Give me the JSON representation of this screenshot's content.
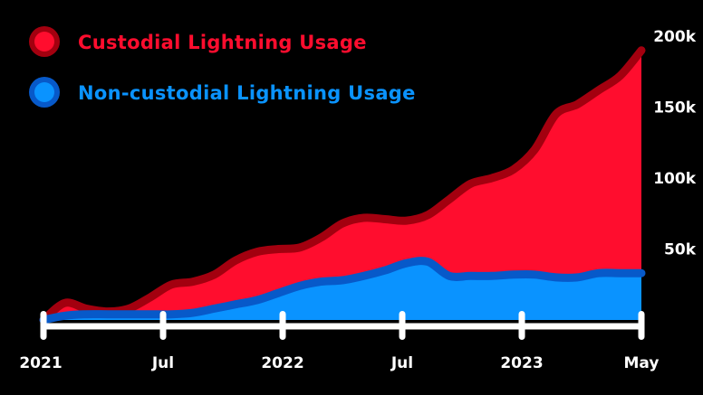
{
  "chart_data": {
    "type": "area",
    "title": "",
    "xlabel": "",
    "ylabel": "",
    "ylim": [
      0,
      210000
    ],
    "x_ticks": [
      "2021",
      "Jul",
      "2022",
      "Jul",
      "2023",
      "May"
    ],
    "y_ticks": [
      {
        "value": 50000,
        "label": "50k"
      },
      {
        "value": 100000,
        "label": "100k"
      },
      {
        "value": 150000,
        "label": "150k"
      },
      {
        "value": 200000,
        "label": "200k"
      }
    ],
    "x": [
      "2021-01",
      "2021-02",
      "2021-03",
      "2021-04",
      "2021-05",
      "2021-06",
      "2021-07",
      "2021-08",
      "2021-09",
      "2021-10",
      "2021-11",
      "2021-12",
      "2022-01",
      "2022-02",
      "2022-03",
      "2022-04",
      "2022-05",
      "2022-06",
      "2022-07",
      "2022-08",
      "2022-09",
      "2022-10",
      "2022-11",
      "2022-12",
      "2023-01",
      "2023-02",
      "2023-03",
      "2023-04",
      "2023-05"
    ],
    "series": [
      {
        "name": "Custodial Lightning Usage",
        "color": "#ff0d2e",
        "outline_color": "#a3000f",
        "values": [
          0,
          12000,
          8000,
          6000,
          8000,
          16000,
          25000,
          27000,
          32000,
          42000,
          48000,
          50000,
          51000,
          58000,
          68000,
          72000,
          71000,
          70000,
          74000,
          85000,
          96000,
          100000,
          106000,
          120000,
          145000,
          152000,
          162000,
          172000,
          190000
        ]
      },
      {
        "name": "Non-custodial Lightning Usage",
        "color": "#0a93ff",
        "outline_color": "#0759c9",
        "values": [
          0,
          3000,
          4000,
          4000,
          4000,
          4000,
          4000,
          5000,
          8000,
          11000,
          14000,
          19000,
          24000,
          27000,
          28000,
          31000,
          35000,
          40000,
          41000,
          31000,
          31000,
          31000,
          32000,
          32000,
          30000,
          30000,
          33000,
          33000,
          33000
        ]
      }
    ],
    "legend_position": "top-left",
    "grid": false
  }
}
